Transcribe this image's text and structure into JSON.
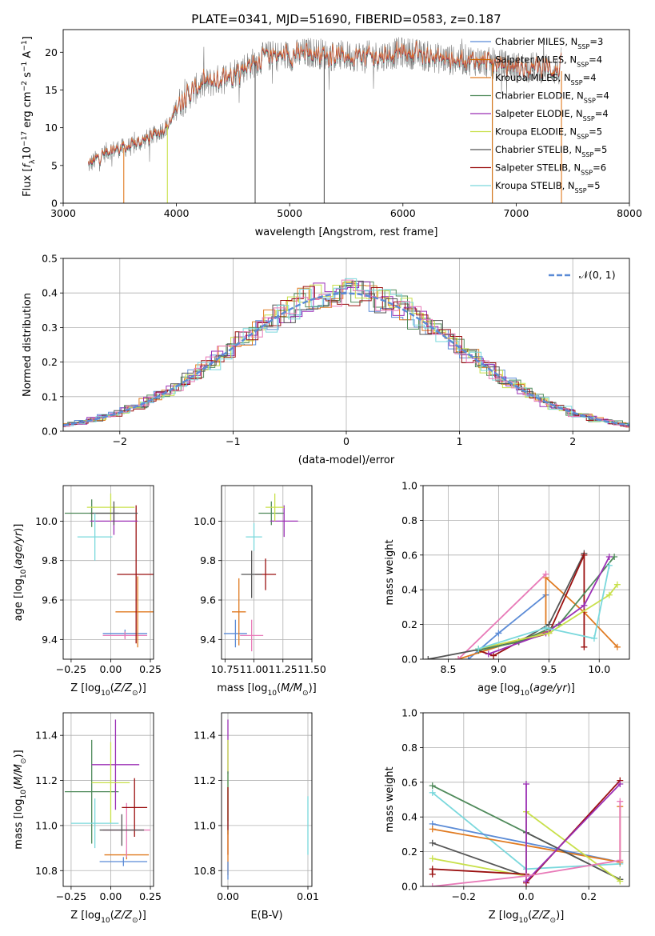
{
  "figure_title": "PLATE=0341, MJD=51690, FIBERID=0583, z=0.187",
  "colors": {
    "Chabrier MILES": "#5b8bd6",
    "Salpeter MILES": "#cc6600",
    "Kroupa MILES": "#e07a20",
    "Chabrier ELODIE": "#4f8a5a",
    "Salpeter ELODIE": "#9b2fb5",
    "Kroupa ELODIE": "#c8e04a",
    "Chabrier STELIB": "#555555",
    "Salpeter STELIB": "#9b1010",
    "Kroupa STELIB": "#7ad8dc",
    "Pink": "#e87ab8",
    "Normal": "#5b8bd6"
  },
  "chart_data": [
    {
      "type": "line",
      "title": "PLATE=0341, MJD=51690, FIBERID=0583, z=0.187",
      "xlabel": "wavelength [Angstrom, rest frame]",
      "ylabel": "Flux [f_λ 10^-17 erg cm^-2 s^-1 A^-1]",
      "xlim": [
        3000,
        8000
      ],
      "ylim": [
        0,
        23
      ],
      "xticks": [
        "3000",
        "4000",
        "5000",
        "6000",
        "7000",
        "8000"
      ],
      "yticks": [
        "0",
        "5",
        "10",
        "15",
        "20"
      ],
      "legend": "top-right",
      "legend_entries": [
        "Chabrier MILES, N_SSP=3",
        "Salpeter MILES, N_SSP=4",
        "Kroupa MILES, N_SSP=4",
        "Chabrier ELODIE, N_SSP=4",
        "Salpeter ELODIE, N_SSP=4",
        "Kroupa ELODIE, N_SSP=5",
        "Chabrier STELIB, N_SSP=5",
        "Salpeter STELIB, N_SSP=6",
        "Kroupa STELIB, N_SSP=5"
      ],
      "spectrum_envelope": {
        "x": [
          3220,
          3400,
          3600,
          3800,
          3950,
          4000,
          4200,
          4400,
          4600,
          4800,
          5000,
          5200,
          5400,
          5600,
          5800,
          6000,
          6200,
          6400,
          6600,
          6800,
          7000,
          7200,
          7400
        ],
        "y": [
          5,
          7.0,
          7.5,
          9.0,
          10.5,
          13.0,
          15.5,
          16.5,
          18.0,
          19.5,
          19.5,
          20.0,
          19.5,
          19.5,
          19.5,
          20.0,
          19.5,
          19.0,
          19.0,
          18.5,
          18.0,
          18.0,
          17.5
        ]
      }
    },
    {
      "type": "line",
      "xlabel": "(data-model)/error",
      "ylabel": "Normed distribution",
      "xlim": [
        -2.5,
        2.5
      ],
      "ylim": [
        0,
        0.5
      ],
      "xticks": [
        "−2",
        "−1",
        "0",
        "1",
        "2"
      ],
      "yticks": [
        "0.0",
        "0.1",
        "0.2",
        "0.3",
        "0.4",
        "0.5"
      ],
      "legend": "top-right",
      "legend_entries": [
        "N(0,1)"
      ],
      "series": [
        {
          "name": "N(0,1)",
          "function": "standard normal pdf"
        }
      ]
    },
    {
      "type": "scatter",
      "xlabel": "Z [log10(Z/Z⊙)]",
      "ylabel": "age [log10(age/yr)]",
      "xlim": [
        -0.3,
        0.27
      ],
      "ylim": [
        9.3,
        10.18
      ],
      "xticks": [
        "−0.25",
        "0.00",
        "0.25"
      ],
      "yticks": [
        "9.4",
        "9.6",
        "9.8",
        "10.0"
      ],
      "points": [
        {
          "x": 0.09,
          "y": 9.43,
          "xerr": 0.14,
          "yerr": 0.02,
          "color": "Chabrier MILES"
        },
        {
          "x": 0.09,
          "y": 9.42,
          "xerr": 0.14,
          "yerr": 0.02,
          "color": "Pink"
        },
        {
          "x": 0.17,
          "y": 9.54,
          "xerr": 0.14,
          "yerr": 0.18,
          "color": "Kroupa MILES"
        },
        {
          "x": 0.16,
          "y": 9.73,
          "xerr": 0.12,
          "yerr": 0.35,
          "color": "Salpeter STELIB"
        },
        {
          "x": -0.12,
          "y": 10.04,
          "xerr": 0.17,
          "yerr": 0.07,
          "color": "Chabrier ELODIE"
        },
        {
          "x": 0.02,
          "y": 10.0,
          "xerr": 0.15,
          "yerr": 0.07,
          "color": "Salpeter ELODIE"
        },
        {
          "x": 0.0,
          "y": 10.07,
          "xerr": 0.15,
          "yerr": 0.07,
          "color": "Kroupa ELODIE"
        },
        {
          "x": 0.02,
          "y": 10.04,
          "xerr": 0.15,
          "yerr": 0.06,
          "color": "Chabrier STELIB"
        },
        {
          "x": -0.1,
          "y": 9.92,
          "xerr": 0.11,
          "yerr": 0.12,
          "color": "Kroupa STELIB"
        }
      ]
    },
    {
      "type": "scatter",
      "xlabel": "mass [log10(M/M⊙)]",
      "ylabel": "",
      "xlim": [
        10.72,
        11.5
      ],
      "ylim": [
        9.3,
        10.18
      ],
      "xticks": [
        "10.75",
        "11.00",
        "11.25",
        "11.50"
      ],
      "yticks": [
        "9.4",
        "9.6",
        "9.8",
        "10.0"
      ],
      "points": [
        {
          "x": 10.84,
          "y": 9.43,
          "xerr": 0.1,
          "yerr": 0.07,
          "color": "Chabrier MILES"
        },
        {
          "x": 10.98,
          "y": 9.42,
          "xerr": 0.1,
          "yerr": 0.08,
          "color": "Pink"
        },
        {
          "x": 10.87,
          "y": 9.54,
          "xerr": 0.06,
          "yerr": 0.17,
          "color": "Kroupa MILES"
        },
        {
          "x": 11.1,
          "y": 9.73,
          "xerr": 0.09,
          "yerr": 0.08,
          "color": "Salpeter STELIB"
        },
        {
          "x": 11.15,
          "y": 10.04,
          "xerr": 0.11,
          "yerr": 0.06,
          "color": "Chabrier ELODIE"
        },
        {
          "x": 11.26,
          "y": 10.0,
          "xerr": 0.12,
          "yerr": 0.08,
          "color": "Salpeter ELODIE"
        },
        {
          "x": 11.18,
          "y": 10.07,
          "xerr": 0.08,
          "yerr": 0.07,
          "color": "Kroupa ELODIE"
        },
        {
          "x": 10.98,
          "y": 9.73,
          "xerr": 0.09,
          "yerr": 0.12,
          "color": "Chabrier STELIB"
        },
        {
          "x": 11.0,
          "y": 9.92,
          "xerr": 0.07,
          "yerr": 0.07,
          "color": "Kroupa STELIB"
        }
      ]
    },
    {
      "type": "line",
      "xlabel": "age [log10(age/yr)]",
      "ylabel": "mass weight",
      "xlim": [
        8.25,
        10.3
      ],
      "ylim": [
        0,
        1
      ],
      "xticks": [
        "8.5",
        "9.0",
        "9.5",
        "10.0"
      ],
      "yticks": [
        "0.0",
        "0.2",
        "0.4",
        "0.6",
        "0.8",
        "1.0"
      ],
      "series": [
        {
          "color": "Chabrier MILES",
          "x": [
            8.7,
            9.0,
            9.47
          ],
          "y": [
            0.0,
            0.15,
            0.37
          ]
        },
        {
          "color": "Kroupa MILES",
          "x": [
            8.6,
            9.47,
            9.47,
            9.85,
            10.18
          ],
          "y": [
            0.0,
            0.16,
            0.47,
            0.27,
            0.07
          ]
        },
        {
          "color": "Pink",
          "x": [
            8.6,
            9.47
          ],
          "y": [
            0.0,
            0.49
          ]
        },
        {
          "color": "Chabrier STELIB",
          "x": [
            8.3,
            9.2,
            9.5,
            9.85
          ],
          "y": [
            0.0,
            0.1,
            0.2,
            0.61
          ]
        },
        {
          "color": "Salpeter STELIB",
          "x": [
            8.8,
            8.95,
            9.2,
            9.5,
            9.85,
            9.85
          ],
          "y": [
            0.05,
            0.02,
            0.1,
            0.15,
            0.6,
            0.07
          ]
        },
        {
          "color": "Chabrier ELODIE",
          "x": [
            8.8,
            9.2,
            9.6,
            10.15
          ],
          "y": [
            0.05,
            0.1,
            0.2,
            0.59
          ]
        },
        {
          "color": "Salpeter ELODIE",
          "x": [
            8.9,
            9.47,
            9.85,
            10.1
          ],
          "y": [
            0.03,
            0.15,
            0.31,
            0.59
          ]
        },
        {
          "color": "Kroupa ELODIE",
          "x": [
            8.8,
            9.5,
            10.1,
            10.18
          ],
          "y": [
            0.06,
            0.15,
            0.37,
            0.43
          ]
        },
        {
          "color": "Kroupa STELIB",
          "x": [
            8.8,
            9.47,
            9.95,
            10.1
          ],
          "y": [
            0.06,
            0.18,
            0.12,
            0.54
          ]
        }
      ]
    },
    {
      "type": "scatter",
      "xlabel": "Z [log10(Z/Z⊙)]",
      "ylabel": "mass [log10(M/M⊙)]",
      "xlim": [
        -0.3,
        0.27
      ],
      "ylim": [
        10.73,
        11.5
      ],
      "xticks": [
        "−0.25",
        "0.00",
        "0.25"
      ],
      "yticks": [
        "10.8",
        "11.0",
        "11.2",
        "11.4"
      ],
      "points": [
        {
          "x": 0.08,
          "y": 10.84,
          "xerr": 0.15,
          "yerr": 0.02,
          "color": "Chabrier MILES"
        },
        {
          "x": 0.1,
          "y": 10.87,
          "xerr": 0.14,
          "yerr": 0.02,
          "color": "Kroupa MILES"
        },
        {
          "x": 0.1,
          "y": 10.98,
          "xerr": 0.15,
          "yerr": 0.12,
          "color": "Pink"
        },
        {
          "x": 0.15,
          "y": 11.08,
          "xerr": 0.08,
          "yerr": 0.13,
          "color": "Salpeter STELIB"
        },
        {
          "x": -0.12,
          "y": 11.15,
          "xerr": 0.17,
          "yerr": 0.23,
          "color": "Chabrier ELODIE"
        },
        {
          "x": 0.03,
          "y": 11.27,
          "xerr": 0.15,
          "yerr": 0.2,
          "color": "Salpeter ELODIE"
        },
        {
          "x": 0.0,
          "y": 11.19,
          "xerr": 0.12,
          "yerr": 0.18,
          "color": "Kroupa ELODIE"
        },
        {
          "x": 0.07,
          "y": 10.98,
          "xerr": 0.14,
          "yerr": 0.07,
          "color": "Chabrier STELIB"
        },
        {
          "x": -0.1,
          "y": 11.01,
          "xerr": 0.15,
          "yerr": 0.11,
          "color": "Kroupa STELIB"
        }
      ]
    },
    {
      "type": "scatter",
      "xlabel": "E(B-V)",
      "ylabel": "",
      "xlim": [
        -0.0008,
        0.0105
      ],
      "ylim": [
        10.73,
        11.5
      ],
      "xticks": [
        "0.00",
        "0.01"
      ],
      "yticks": [
        "10.8",
        "11.0",
        "11.2",
        "11.4"
      ],
      "points": [
        {
          "x": 0.0,
          "y": 11.35,
          "yerr": 0.12,
          "color": "Salpeter ELODIE"
        },
        {
          "x": 0.0,
          "y": 11.2,
          "yerr": 0.18,
          "color": "Kroupa ELODIE"
        },
        {
          "x": 0.0,
          "y": 11.1,
          "yerr": 0.14,
          "color": "Chabrier ELODIE"
        },
        {
          "x": 0.0,
          "y": 11.02,
          "yerr": 0.15,
          "color": "Salpeter STELIB"
        },
        {
          "x": 0.0,
          "y": 10.88,
          "yerr": 0.1,
          "color": "Kroupa MILES"
        },
        {
          "x": 0.0,
          "y": 10.8,
          "yerr": 0.04,
          "color": "Chabrier MILES"
        },
        {
          "x": 0.01,
          "y": 11.0,
          "yerr": 0.13,
          "color": "Kroupa STELIB"
        }
      ]
    },
    {
      "type": "line",
      "xlabel": "Z [log10(Z/Z⊙)]",
      "ylabel": "mass weight",
      "xlim": [
        -0.33,
        0.33
      ],
      "ylim": [
        0,
        1
      ],
      "xticks": [
        "−0.2",
        "0.0",
        "0.2"
      ],
      "yticks": [
        "0.0",
        "0.2",
        "0.4",
        "0.6",
        "0.8",
        "1.0"
      ],
      "series": [
        {
          "color": "Chabrier ELODIE",
          "x": [
            -0.3,
            0.3
          ],
          "y": [
            0.58,
            0.04
          ]
        },
        {
          "color": "Kroupa STELIB",
          "x": [
            -0.3,
            0.0,
            0.3
          ],
          "y": [
            0.54,
            0.1,
            0.13
          ]
        },
        {
          "color": "Chabrier MILES",
          "x": [
            -0.3,
            0.3
          ],
          "y": [
            0.36,
            0.14
          ]
        },
        {
          "color": "Kroupa MILES",
          "x": [
            -0.3,
            0.3,
            0.3
          ],
          "y": [
            0.33,
            0.14,
            0.46
          ]
        },
        {
          "color": "Chabrier STELIB",
          "x": [
            -0.3,
            0.0,
            0.0,
            0.3
          ],
          "y": [
            0.25,
            0.06,
            0.31,
            0.04
          ]
        },
        {
          "color": "Kroupa ELODIE",
          "x": [
            -0.3,
            0.0,
            0.0,
            0.3
          ],
          "y": [
            0.16,
            0.06,
            0.43,
            0.03
          ]
        },
        {
          "color": "Salpeter STELIB",
          "x": [
            -0.3,
            -0.3,
            0.0,
            0.0,
            0.3
          ],
          "y": [
            0.07,
            0.1,
            0.07,
            0.02,
            0.61
          ]
        },
        {
          "color": "Salpeter ELODIE",
          "x": [
            0.0,
            0.0,
            0.3
          ],
          "y": [
            0.59,
            0.03,
            0.59
          ]
        },
        {
          "color": "Pink",
          "x": [
            -0.3,
            0.0,
            0.3,
            0.3
          ],
          "y": [
            0.0,
            0.06,
            0.15,
            0.49
          ]
        }
      ]
    }
  ]
}
